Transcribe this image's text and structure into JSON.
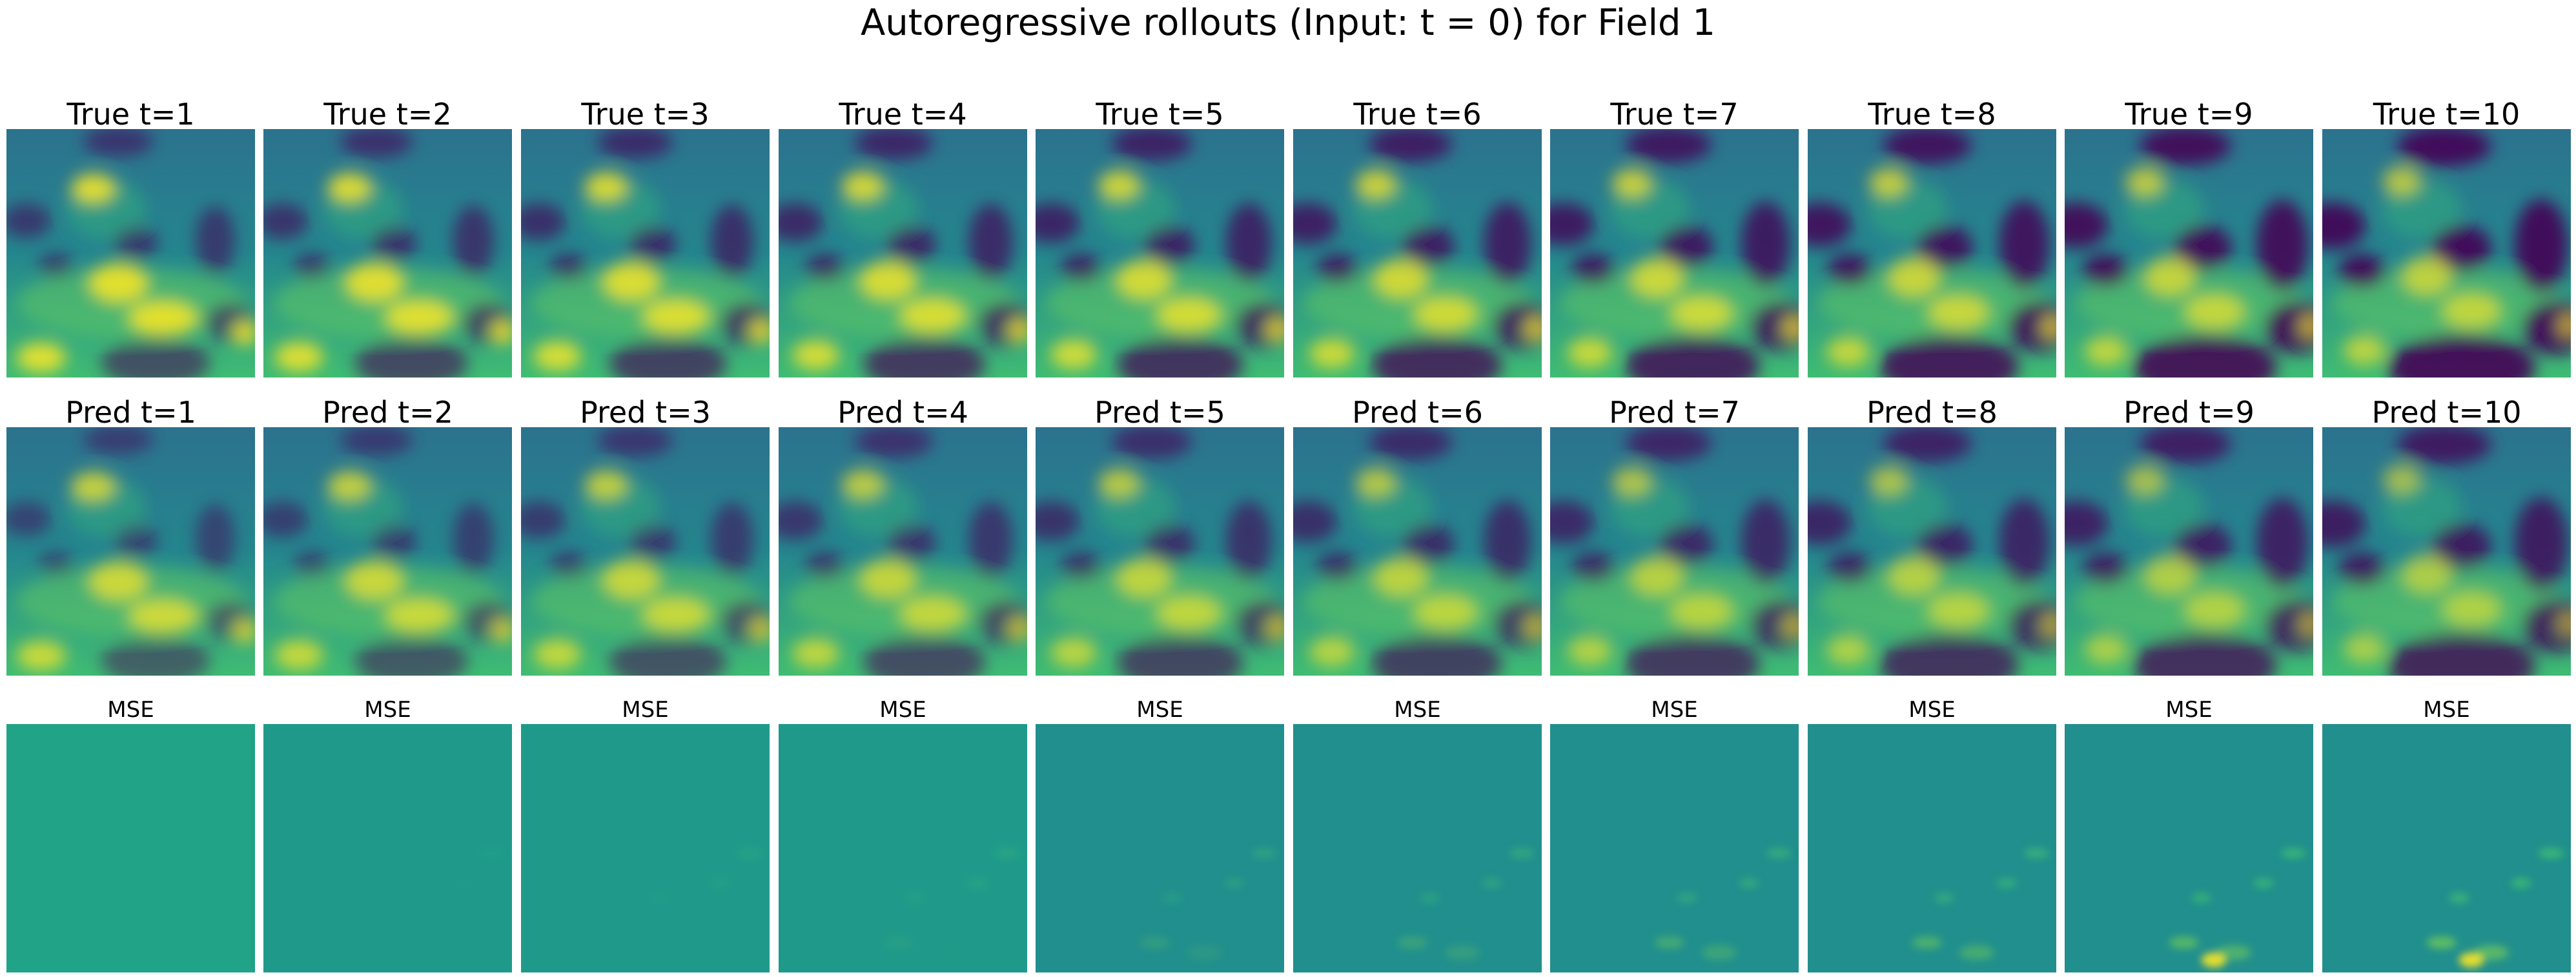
{
  "figure": {
    "title": "Autoregressive rollouts (Input: t = 0) for Field 1"
  },
  "rows": [
    {
      "kind": "true",
      "labels": [
        "True t=1",
        "True t=2",
        "True t=3",
        "True t=4",
        "True t=5",
        "True t=6",
        "True t=7",
        "True t=8",
        "True t=9",
        "True t=10"
      ]
    },
    {
      "kind": "pred",
      "labels": [
        "Pred t=1",
        "Pred t=2",
        "Pred t=3",
        "Pred t=4",
        "Pred t=5",
        "Pred t=6",
        "Pred t=7",
        "Pred t=8",
        "Pred t=9",
        "Pred t=10"
      ]
    },
    {
      "kind": "mse",
      "labels": [
        "MSE",
        "MSE",
        "MSE",
        "MSE",
        "MSE",
        "MSE",
        "MSE",
        "MSE",
        "MSE",
        "MSE"
      ]
    }
  ],
  "colormap": {
    "name": "viridis",
    "dark": "#440154",
    "mid": "#21918c",
    "bright": "#fde725"
  }
}
